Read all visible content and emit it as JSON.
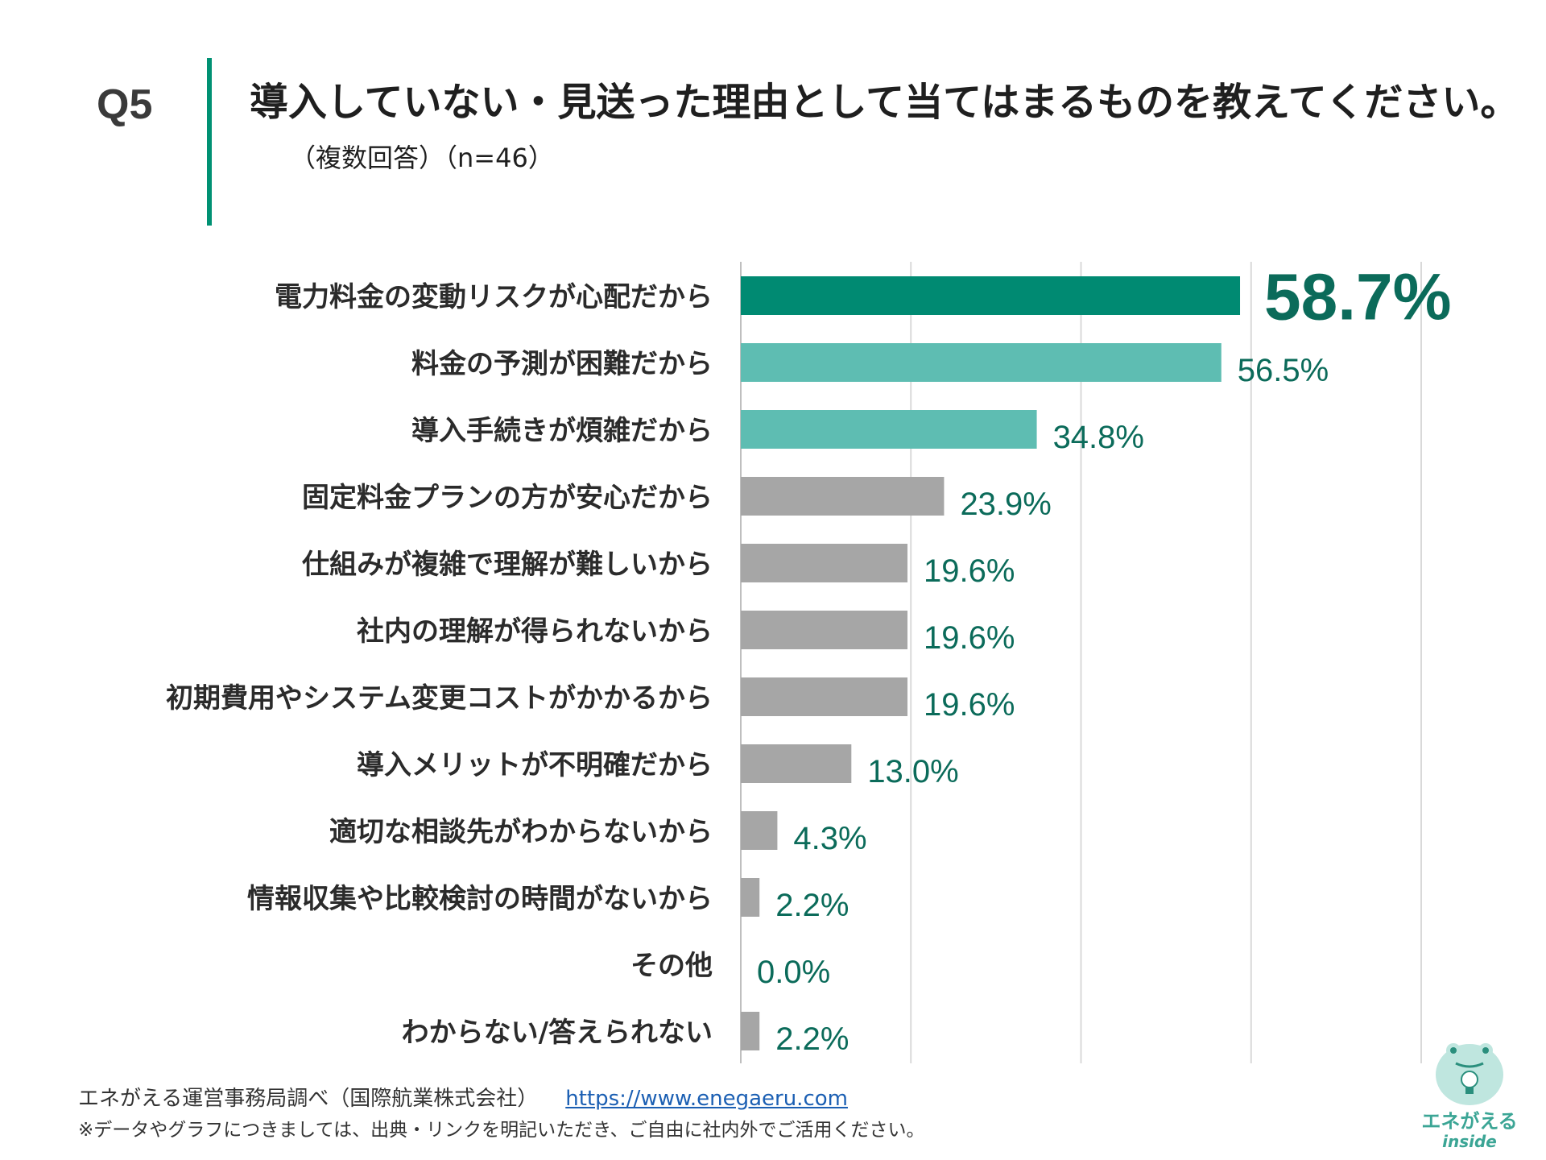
{
  "header": {
    "question_number": "Q5",
    "title": "導入していない・見送った理由として当てはまるものを教えてください。",
    "subtitle": "（複数回答）（n=46）"
  },
  "footer": {
    "source": "エネがえる運営事務局調べ（国際航業株式会社）",
    "link": "https://www.enegaeru.com",
    "note": "※データやグラフにつきましては、出典・リンクを明記いただき、ご自由に社内外でご活用ください。"
  },
  "logo": {
    "text": "エネがえる",
    "sub": "inside"
  },
  "colors": {
    "top": "#008a72",
    "high": "#5ebdb2",
    "rest": "#a6a6a6",
    "label": "#0b6b5a",
    "grid": "#d9d9d9"
  },
  "chart_data": {
    "type": "bar",
    "orientation": "horizontal",
    "categories": [
      "電力料金の変動リスクが心配だから",
      "料金の予測が困難だから",
      "導入手続きが煩雑だから",
      "固定料金プランの方が安心だから",
      "仕組みが複雑で理解が難しいから",
      "社内の理解が得られないから",
      "初期費用やシステム変更コストがかかるから",
      "導入メリットが不明確だから",
      "適切な相談先がわからないから",
      "情報収集や比較検討の時間がないから",
      "その他",
      "わからない/答えられない"
    ],
    "values": [
      58.7,
      56.5,
      34.8,
      23.9,
      19.6,
      19.6,
      19.6,
      13.0,
      4.3,
      2.2,
      0.0,
      2.2
    ],
    "value_labels": [
      "58.7%",
      "56.5%",
      "34.8%",
      "23.9%",
      "19.6%",
      "19.6%",
      "19.6%",
      "13.0%",
      "4.3%",
      "2.2%",
      "0.0%",
      "2.2%"
    ],
    "bar_tiers": [
      "top",
      "high",
      "high",
      "rest",
      "rest",
      "rest",
      "rest",
      "rest",
      "rest",
      "rest",
      "rest",
      "rest"
    ],
    "xlim": [
      0,
      80
    ],
    "grid": true,
    "legend": false
  }
}
